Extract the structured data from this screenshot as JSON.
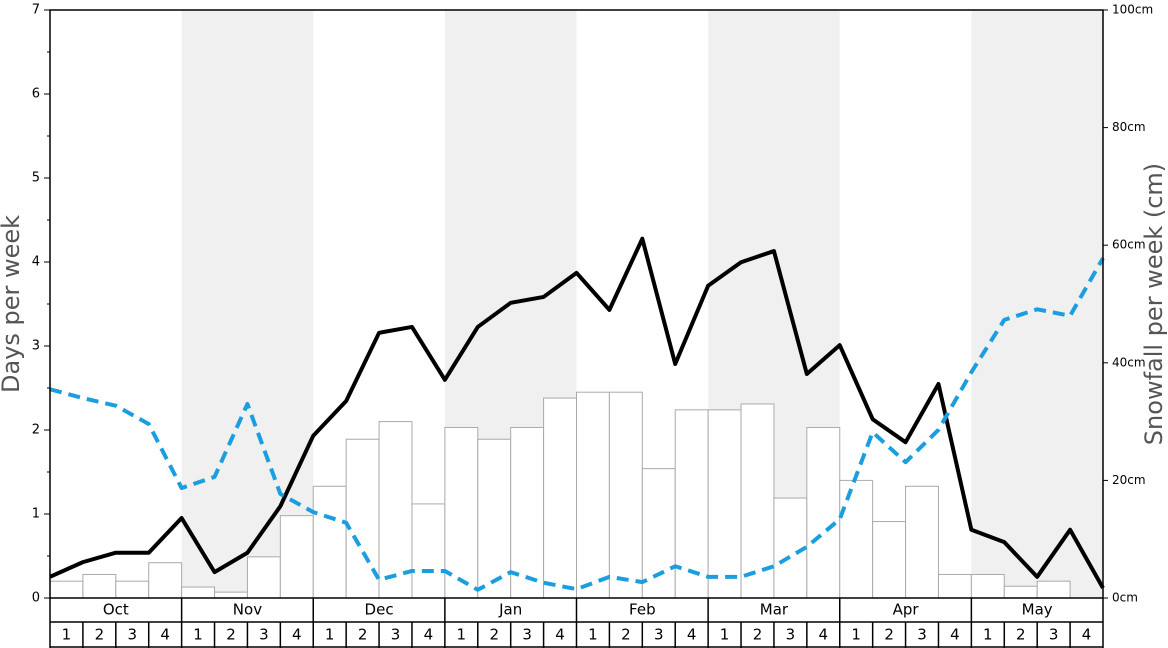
{
  "chart_data": {
    "type": "bar",
    "y_label": "Days per week",
    "y2_label": "Snowfall per week (cm)",
    "months": [
      "Oct",
      "Nov",
      "Dec",
      "Jan",
      "Feb",
      "Mar",
      "Apr",
      "May"
    ],
    "week_labels": [
      "1",
      "2",
      "3",
      "4"
    ],
    "values": [
      0.2,
      0.28,
      0.2,
      0.42,
      0.13,
      0.07,
      0.49,
      0.98,
      1.33,
      1.89,
      2.1,
      1.12,
      2.03,
      1.89,
      2.03,
      2.38,
      2.45,
      2.45,
      1.54,
      2.24,
      2.24,
      2.31,
      1.19,
      2.03,
      1.4,
      0.91,
      1.33,
      0.28,
      0.28,
      0.14,
      0.2,
      0
    ],
    "color": "#ffffff",
    "ylim": [
      0,
      7
    ],
    "yticks": [
      0,
      1,
      2,
      3,
      4,
      5,
      6,
      7
    ],
    "y2lim": [
      0,
      100
    ],
    "y2ticks": [
      {
        "value": 0,
        "label": "0cm"
      },
      {
        "value": 20,
        "label": "20cm"
      },
      {
        "value": 40,
        "label": "40cm"
      },
      {
        "value": 60,
        "label": "60cm"
      },
      {
        "value": 80,
        "label": "80cm"
      },
      {
        "value": 100,
        "label": "100cm"
      }
    ],
    "series": [
      {
        "color": "#000000",
        "axis": "y2",
        "dashed": false,
        "values": [
          3.6,
          6.1,
          7.7,
          7.7,
          13.6,
          4.4,
          7.7,
          15.6,
          27.6,
          33.5,
          45.1,
          46.1,
          37.1,
          46.1,
          50.2,
          51.2,
          55.3,
          49,
          61.1,
          39.8,
          53.1,
          57.1,
          59,
          38.1,
          43,
          30.4,
          26.5,
          36.4,
          11.6,
          9.5,
          3.6,
          11.6,
          1.7
        ]
      },
      {
        "color": "#1a9ee0",
        "axis": "y2",
        "dashed": true,
        "values": [
          35.5,
          34,
          32.7,
          29.6,
          18.7,
          20.6,
          33,
          17.7,
          14.6,
          12.8,
          3.1,
          4.6,
          4.6,
          1.4,
          4.4,
          2.6,
          1.5,
          3.6,
          2.7,
          5.4,
          3.6,
          3.6,
          5.4,
          8.7,
          13.4,
          28.2,
          23.1,
          28.6,
          38.4,
          47.3,
          49.1,
          48,
          57.8
        ]
      }
    ]
  }
}
